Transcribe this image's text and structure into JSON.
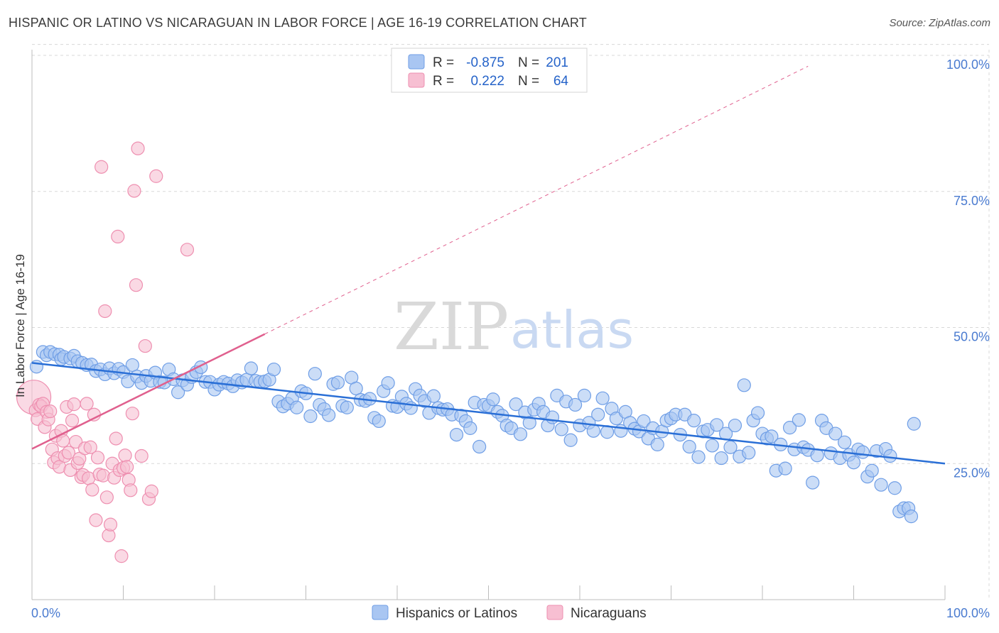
{
  "title": "HISPANIC OR LATINO VS NICARAGUAN IN LABOR FORCE | AGE 16-19 CORRELATION CHART",
  "source": "Source: ZipAtlas.com",
  "colors": {
    "blue_fill": "#a9c6f2",
    "blue_stroke": "#6f9ee6",
    "blue_line": "#2a6fd6",
    "pink_fill": "#f7bfd2",
    "pink_stroke": "#ee8fb0",
    "pink_line": "#e0608e",
    "grid": "#d8d8d8",
    "axis_text": "#4a7bd0"
  },
  "legend": {
    "r_label": "R =",
    "n_label": "N =",
    "series": [
      {
        "r": "-0.875",
        "n": "201"
      },
      {
        "r": "0.222",
        "n": "64"
      }
    ]
  },
  "watermark": {
    "zip": "ZIP",
    "atlas": "atlas"
  },
  "chart_data": {
    "type": "scatter",
    "title": "HISPANIC OR LATINO VS NICARAGUAN IN LABOR FORCE | AGE 16-19 CORRELATION CHART",
    "xlabel": "",
    "ylabel": "In Labor Force | Age 16-19",
    "xlim": [
      0,
      100
    ],
    "ylim": [
      0,
      103
    ],
    "x_tick_labels": [
      "0.0%",
      "100.0%"
    ],
    "y_ticks": [
      25,
      50,
      75,
      100
    ],
    "y_tick_labels": [
      "25.0%",
      "50.0%",
      "75.0%",
      "100.0%"
    ],
    "grid": true,
    "legend_placement": "top-center",
    "series": [
      {
        "name": "Hispanics or Latinos",
        "r": -0.875,
        "n": 201,
        "trend": {
          "x0": 0,
          "y0": 43.5,
          "x1": 100,
          "y1": 25.0
        },
        "points": [
          [
            0.5,
            42.8
          ],
          [
            1.2,
            45.5
          ],
          [
            1.6,
            44.9
          ],
          [
            2.0,
            45.5
          ],
          [
            2.5,
            45.1
          ],
          [
            3.0,
            45.0
          ],
          [
            3.2,
            44.2
          ],
          [
            3.5,
            44.6
          ],
          [
            4.2,
            44.3
          ],
          [
            4.6,
            44.8
          ],
          [
            5.0,
            43.8
          ],
          [
            5.5,
            43.5
          ],
          [
            6.0,
            43.1
          ],
          [
            6.5,
            43.2
          ],
          [
            7.0,
            42.0
          ],
          [
            7.5,
            42.3
          ],
          [
            8.0,
            41.4
          ],
          [
            8.5,
            42.5
          ],
          [
            9.0,
            41.6
          ],
          [
            9.5,
            42.4
          ],
          [
            10.0,
            41.8
          ],
          [
            10.5,
            40.1
          ],
          [
            11.0,
            43.1
          ],
          [
            11.5,
            41.0
          ],
          [
            12.0,
            39.8
          ],
          [
            12.5,
            41.1
          ],
          [
            13.0,
            40.2
          ],
          [
            13.5,
            41.7
          ],
          [
            14.0,
            40.0
          ],
          [
            14.5,
            39.9
          ],
          [
            15.0,
            42.3
          ],
          [
            15.5,
            40.5
          ],
          [
            16.0,
            38.1
          ],
          [
            16.5,
            40.3
          ],
          [
            17.0,
            39.5
          ],
          [
            17.5,
            40.9
          ],
          [
            18.0,
            41.8
          ],
          [
            18.5,
            42.7
          ],
          [
            19.0,
            40.0
          ],
          [
            19.5,
            40.0
          ],
          [
            20.0,
            38.6
          ],
          [
            20.5,
            39.5
          ],
          [
            21.0,
            40.0
          ],
          [
            21.5,
            39.7
          ],
          [
            22.0,
            39.2
          ],
          [
            22.5,
            40.3
          ],
          [
            23.0,
            39.9
          ],
          [
            23.5,
            40.4
          ],
          [
            24.0,
            42.5
          ],
          [
            24.5,
            40.2
          ],
          [
            25.0,
            40.0
          ],
          [
            25.5,
            40.1
          ],
          [
            26.0,
            40.4
          ],
          [
            26.5,
            42.3
          ],
          [
            27.0,
            36.4
          ],
          [
            27.5,
            35.5
          ],
          [
            28.0,
            36.0
          ],
          [
            28.5,
            37.0
          ],
          [
            29.0,
            35.3
          ],
          [
            29.5,
            38.3
          ],
          [
            30.0,
            37.9
          ],
          [
            30.5,
            33.7
          ],
          [
            31.0,
            41.5
          ],
          [
            31.5,
            35.8
          ],
          [
            32.0,
            35.0
          ],
          [
            32.5,
            33.9
          ],
          [
            33.0,
            39.6
          ],
          [
            33.5,
            39.9
          ],
          [
            34.0,
            35.6
          ],
          [
            34.5,
            35.3
          ],
          [
            35.0,
            40.8
          ],
          [
            35.5,
            38.8
          ],
          [
            36.0,
            36.7
          ],
          [
            36.5,
            36.5
          ],
          [
            37.0,
            36.9
          ],
          [
            37.5,
            33.4
          ],
          [
            38.0,
            32.8
          ],
          [
            38.5,
            38.3
          ],
          [
            39.0,
            39.8
          ],
          [
            39.5,
            35.6
          ],
          [
            40.0,
            35.4
          ],
          [
            40.5,
            37.3
          ],
          [
            41.0,
            36.0
          ],
          [
            41.5,
            35.2
          ],
          [
            42.0,
            38.7
          ],
          [
            42.5,
            37.5
          ],
          [
            43.0,
            36.5
          ],
          [
            43.5,
            34.3
          ],
          [
            44.0,
            37.4
          ],
          [
            44.5,
            35.2
          ],
          [
            45.0,
            34.9
          ],
          [
            45.5,
            35.0
          ],
          [
            46.0,
            34.0
          ],
          [
            46.5,
            30.3
          ],
          [
            47.0,
            33.8
          ],
          [
            47.5,
            32.8
          ],
          [
            48.0,
            31.5
          ],
          [
            48.5,
            36.2
          ],
          [
            49.0,
            28.1
          ],
          [
            49.5,
            35.8
          ],
          [
            50.0,
            35.6
          ],
          [
            50.5,
            36.8
          ],
          [
            51.0,
            34.5
          ],
          [
            51.5,
            33.8
          ],
          [
            52.0,
            32.0
          ],
          [
            52.5,
            31.5
          ],
          [
            53.0,
            35.9
          ],
          [
            53.5,
            30.4
          ],
          [
            54.0,
            34.4
          ],
          [
            54.5,
            32.5
          ],
          [
            55.0,
            34.9
          ],
          [
            55.5,
            36.0
          ],
          [
            56.0,
            34.5
          ],
          [
            56.5,
            32.0
          ],
          [
            57.0,
            33.5
          ],
          [
            57.5,
            37.5
          ],
          [
            58.0,
            31.3
          ],
          [
            58.5,
            36.4
          ],
          [
            59.0,
            29.3
          ],
          [
            59.5,
            35.8
          ],
          [
            60.0,
            32.0
          ],
          [
            60.5,
            37.5
          ],
          [
            61.0,
            32.5
          ],
          [
            61.5,
            31.0
          ],
          [
            62.0,
            34.0
          ],
          [
            62.5,
            37.0
          ],
          [
            63.0,
            30.8
          ],
          [
            63.5,
            35.1
          ],
          [
            64.0,
            33.3
          ],
          [
            64.5,
            31.0
          ],
          [
            65.0,
            34.5
          ],
          [
            65.5,
            32.5
          ],
          [
            66.0,
            31.4
          ],
          [
            66.5,
            30.9
          ],
          [
            67.0,
            32.8
          ],
          [
            67.5,
            29.6
          ],
          [
            68.0,
            31.5
          ],
          [
            68.5,
            28.5
          ],
          [
            69.0,
            30.9
          ],
          [
            69.5,
            32.9
          ],
          [
            70.0,
            33.3
          ],
          [
            70.5,
            34.0
          ],
          [
            71.0,
            30.3
          ],
          [
            71.5,
            34.0
          ],
          [
            72.0,
            28.1
          ],
          [
            72.5,
            32.9
          ],
          [
            73.0,
            26.2
          ],
          [
            73.5,
            30.9
          ],
          [
            74.0,
            31.2
          ],
          [
            74.5,
            28.3
          ],
          [
            75.0,
            32.1
          ],
          [
            75.5,
            26.0
          ],
          [
            76.0,
            30.5
          ],
          [
            76.5,
            28.0
          ],
          [
            77.0,
            32.0
          ],
          [
            77.5,
            26.3
          ],
          [
            78.0,
            39.4
          ],
          [
            78.5,
            27.0
          ],
          [
            79.0,
            32.9
          ],
          [
            79.5,
            34.3
          ],
          [
            80.0,
            30.5
          ],
          [
            80.5,
            29.6
          ],
          [
            81.0,
            30.0
          ],
          [
            81.5,
            23.7
          ],
          [
            82.0,
            28.5
          ],
          [
            82.5,
            24.1
          ],
          [
            83.0,
            31.6
          ],
          [
            83.5,
            27.6
          ],
          [
            84.0,
            33.0
          ],
          [
            84.5,
            28.0
          ],
          [
            85.0,
            27.5
          ],
          [
            85.5,
            21.5
          ],
          [
            86.0,
            26.5
          ],
          [
            86.5,
            32.9
          ],
          [
            87.0,
            31.5
          ],
          [
            87.5,
            26.9
          ],
          [
            88.0,
            30.5
          ],
          [
            88.5,
            26.0
          ],
          [
            89.0,
            28.9
          ],
          [
            89.5,
            26.6
          ],
          [
            90.0,
            25.2
          ],
          [
            90.5,
            27.6
          ],
          [
            91.0,
            27.1
          ],
          [
            91.5,
            22.6
          ],
          [
            92.0,
            23.7
          ],
          [
            92.5,
            27.3
          ],
          [
            93.0,
            21.1
          ],
          [
            93.5,
            27.7
          ],
          [
            94.0,
            26.4
          ],
          [
            94.5,
            20.5
          ],
          [
            95.0,
            16.2
          ],
          [
            95.5,
            16.8
          ],
          [
            96.0,
            16.8
          ],
          [
            96.3,
            15.3
          ],
          [
            96.6,
            32.3
          ]
        ]
      },
      {
        "name": "Nicaraguans",
        "r": 0.222,
        "n": 64,
        "trend": {
          "x0": 0,
          "y0": 27.7,
          "x1": 25.5,
          "y1": 48.8
        },
        "trend_extension": {
          "x0": 25.5,
          "y0": 48.8,
          "x1": 85.0,
          "y1": 98.0
        },
        "points": [
          [
            0.2,
            37.2
          ],
          [
            0.4,
            34.8
          ],
          [
            0.6,
            33.2
          ],
          [
            0.8,
            35.8
          ],
          [
            1.0,
            35.5
          ],
          [
            1.2,
            36.0
          ],
          [
            1.4,
            31.7
          ],
          [
            1.6,
            34.5
          ],
          [
            1.8,
            33.1
          ],
          [
            2.0,
            34.6
          ],
          [
            2.2,
            27.6
          ],
          [
            2.4,
            25.2
          ],
          [
            2.6,
            30.1
          ],
          [
            2.8,
            26.0
          ],
          [
            3.0,
            24.4
          ],
          [
            3.2,
            31.0
          ],
          [
            3.4,
            29.2
          ],
          [
            3.6,
            26.4
          ],
          [
            3.8,
            35.4
          ],
          [
            4.0,
            27.0
          ],
          [
            4.2,
            23.8
          ],
          [
            4.4,
            32.9
          ],
          [
            4.6,
            35.9
          ],
          [
            4.8,
            29.0
          ],
          [
            5.0,
            25.1
          ],
          [
            5.2,
            25.9
          ],
          [
            5.4,
            22.5
          ],
          [
            5.6,
            22.9
          ],
          [
            5.8,
            27.8
          ],
          [
            6.0,
            36.0
          ],
          [
            6.2,
            22.3
          ],
          [
            6.4,
            28.0
          ],
          [
            6.6,
            20.2
          ],
          [
            6.8,
            34.0
          ],
          [
            7.0,
            14.6
          ],
          [
            7.2,
            26.1
          ],
          [
            7.4,
            23.0
          ],
          [
            7.6,
            79.5
          ],
          [
            7.8,
            22.8
          ],
          [
            8.0,
            53.0
          ],
          [
            8.2,
            18.8
          ],
          [
            8.4,
            11.8
          ],
          [
            8.6,
            13.8
          ],
          [
            8.8,
            25.0
          ],
          [
            9.0,
            22.4
          ],
          [
            9.2,
            29.6
          ],
          [
            9.4,
            66.7
          ],
          [
            9.6,
            23.8
          ],
          [
            9.8,
            8.0
          ],
          [
            10.0,
            24.2
          ],
          [
            10.2,
            26.5
          ],
          [
            10.4,
            24.4
          ],
          [
            10.6,
            22.0
          ],
          [
            10.8,
            20.1
          ],
          [
            11.0,
            34.2
          ],
          [
            11.2,
            75.1
          ],
          [
            11.4,
            57.8
          ],
          [
            11.6,
            82.9
          ],
          [
            12.0,
            26.4
          ],
          [
            12.4,
            46.6
          ],
          [
            12.8,
            18.5
          ],
          [
            13.1,
            19.9
          ],
          [
            13.6,
            77.8
          ],
          [
            17.0,
            64.3
          ]
        ]
      }
    ]
  },
  "bottom_legend": [
    "Hispanics or Latinos",
    "Nicaraguans"
  ]
}
